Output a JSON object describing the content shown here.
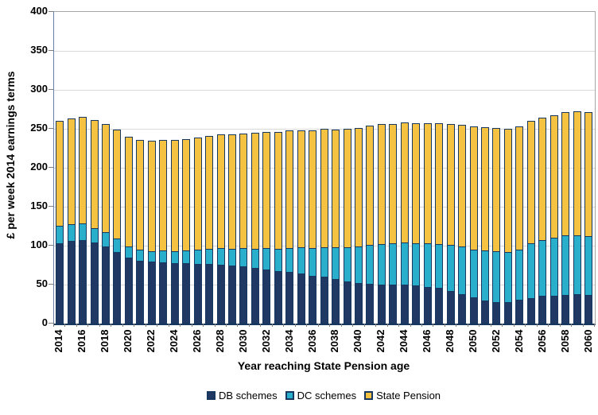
{
  "chart_data": {
    "type": "bar",
    "stacked": true,
    "title": "",
    "xlabel": "Year reaching State Pension age",
    "ylabel": "£ per week 2014 earnings terms",
    "ylim": [
      0,
      400
    ],
    "yticks": [
      0,
      50,
      100,
      150,
      200,
      250,
      300,
      350,
      400
    ],
    "grid": true,
    "legend_position": "bottom",
    "x": [
      2014,
      2015,
      2016,
      2017,
      2018,
      2019,
      2020,
      2021,
      2022,
      2023,
      2024,
      2025,
      2026,
      2027,
      2028,
      2029,
      2030,
      2031,
      2032,
      2033,
      2034,
      2035,
      2036,
      2037,
      2038,
      2039,
      2040,
      2041,
      2042,
      2043,
      2044,
      2045,
      2046,
      2047,
      2048,
      2049,
      2050,
      2051,
      2052,
      2053,
      2054,
      2055,
      2056,
      2057,
      2058,
      2059,
      2060
    ],
    "xtick_labels": [
      "2014",
      "2016",
      "2018",
      "2020",
      "2022",
      "2024",
      "2026",
      "2028",
      "2030",
      "2032",
      "2034",
      "2036",
      "2038",
      "2040",
      "2042",
      "2044",
      "2046",
      "2048",
      "2050",
      "2052",
      "2054",
      "2056",
      "2058",
      "2060"
    ],
    "series": [
      {
        "name": "DB schemes",
        "color": "#1F3864",
        "values": [
          103,
          106,
          107,
          104,
          99,
          92,
          85,
          81,
          80,
          79,
          78,
          78,
          77,
          77,
          76,
          74,
          73,
          71,
          69,
          67,
          66,
          64,
          61,
          60,
          57,
          54,
          52,
          51,
          50,
          50,
          50,
          49,
          47,
          46,
          42,
          38,
          34,
          30,
          28,
          28,
          31,
          33,
          36,
          36,
          37,
          38,
          37
        ]
      },
      {
        "name": "DC schemes",
        "color": "#29AECB",
        "values": [
          24,
          23,
          23,
          19,
          19,
          18,
          15,
          15,
          14,
          16,
          16,
          17,
          19,
          20,
          22,
          23,
          25,
          26,
          29,
          30,
          32,
          35,
          37,
          39,
          42,
          45,
          48,
          51,
          53,
          54,
          55,
          55,
          57,
          57,
          60,
          62,
          62,
          65,
          66,
          65,
          65,
          71,
          72,
          75,
          77,
          76,
          76
        ]
      },
      {
        "name": "State Pension",
        "color": "#F5C242",
        "values": [
          135,
          136,
          137,
          140,
          140,
          141,
          142,
          142,
          143,
          143,
          144,
          144,
          145,
          146,
          147,
          148,
          148,
          150,
          150,
          151,
          152,
          151,
          152,
          153,
          152,
          153,
          153,
          154,
          155,
          154,
          155,
          155,
          155,
          156,
          156,
          157,
          159,
          159,
          159,
          159,
          159,
          158,
          158,
          158,
          159,
          161,
          161
        ]
      }
    ]
  },
  "colors": {
    "bar_outline": "#17375E",
    "gridline": "#D9D9D9",
    "plot_border": "#A6A6A6",
    "axis_left": "#6A7FA8",
    "axis_bottom": "#17375E",
    "tick": "#7F7F7F",
    "text": "#000000",
    "background": "#FFFFFF"
  },
  "legend": {
    "items": [
      "DB schemes",
      "DC schemes",
      "State Pension"
    ]
  }
}
